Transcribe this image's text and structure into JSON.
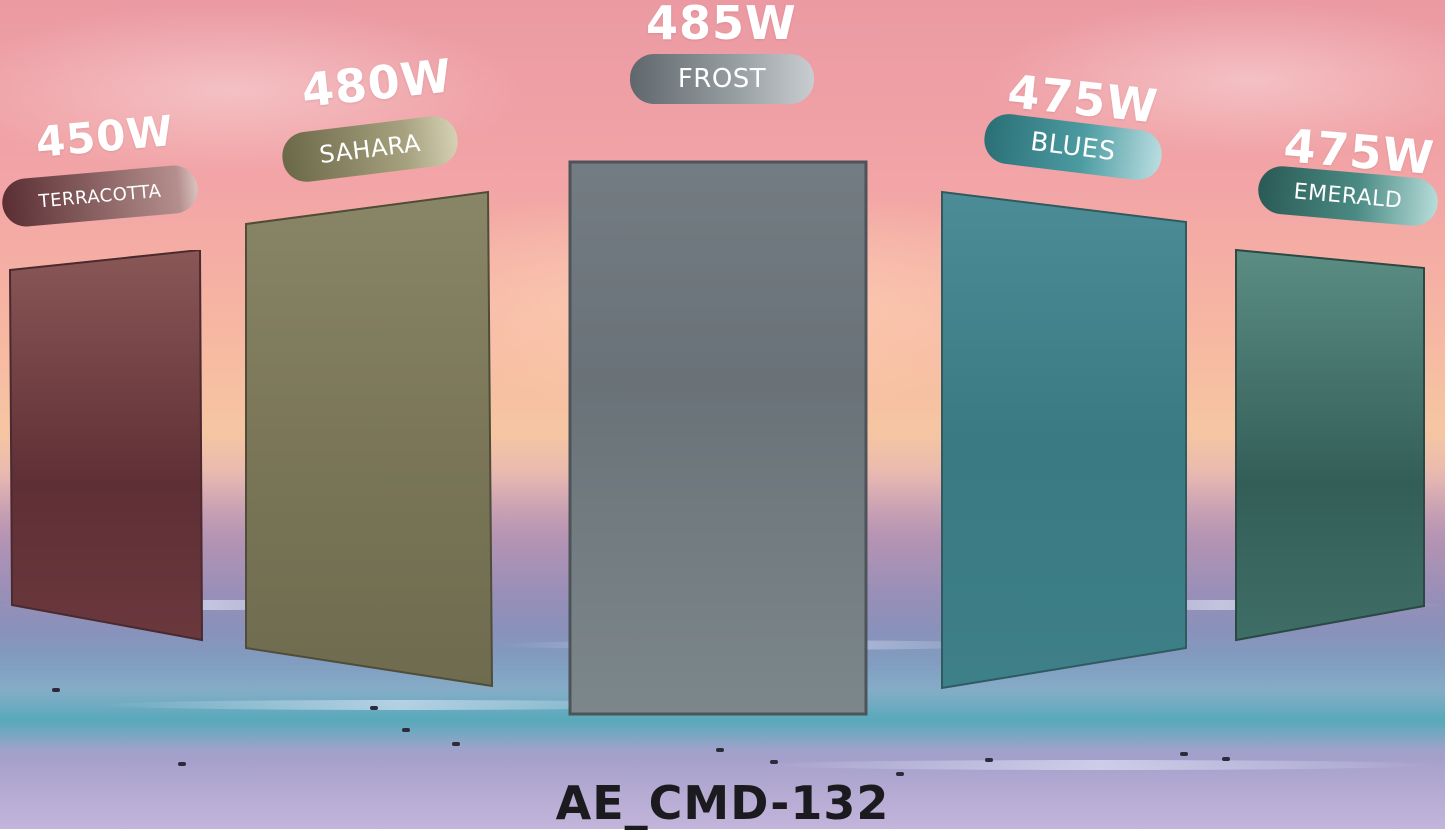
{
  "model": "AE_CMD-132",
  "panels": [
    {
      "name": "TERRACOTTA",
      "power": "450W",
      "color": "#6b3c42"
    },
    {
      "name": "SAHARA",
      "power": "480W",
      "color": "#7d7a5c"
    },
    {
      "name": "FROST",
      "power": "485W",
      "color": "#6e7a80"
    },
    {
      "name": "BLUES",
      "power": "475W",
      "color": "#3f7f88"
    },
    {
      "name": "EMERALD",
      "power": "475W",
      "color": "#3f6e68"
    }
  ]
}
